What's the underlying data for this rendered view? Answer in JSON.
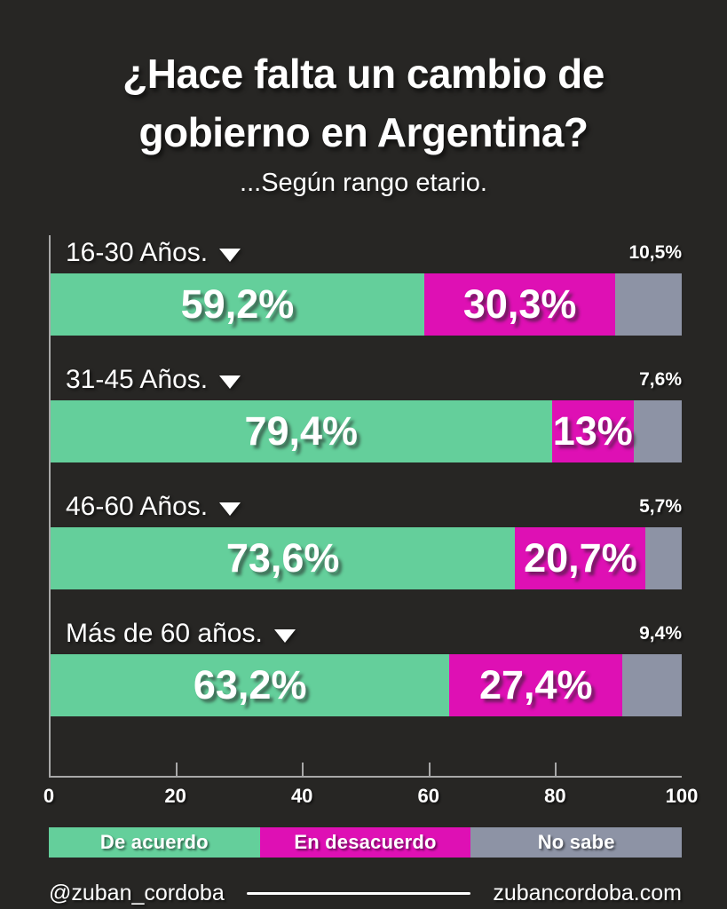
{
  "colors": {
    "background": "#272624",
    "axis": "#A8A8A8",
    "text": "#FFFFFF",
    "agree": "#64CF9B",
    "disagree": "#DE10B4",
    "no_answer": "#8D93A5"
  },
  "header": {
    "title_lines": [
      "¿Hace falta un cambio de",
      "gobierno en Argentina?"
    ],
    "title": "¿Hace falta un cambio de gobierno en Argentina?",
    "subtitle": "...Según rango etario."
  },
  "chart_data": {
    "type": "bar",
    "orientation": "horizontal",
    "stacked": true,
    "title": "¿Hace falta un cambio de gobierno en Argentina?",
    "subtitle": "...Según rango etario.",
    "categories": [
      "16-30 Años.",
      "31-45 Años.",
      "46-60 Años.",
      "Más de 60 años."
    ],
    "series": [
      {
        "name": "De acuerdo",
        "color": "#64CF9B",
        "values": [
          59.2,
          79.4,
          73.6,
          63.2
        ],
        "labels": [
          "59,2%",
          "79,4%",
          "73,6%",
          "63,2%"
        ],
        "label_position": "inside"
      },
      {
        "name": "En desacuerdo",
        "color": "#DE10B4",
        "values": [
          30.3,
          13.0,
          20.7,
          27.4
        ],
        "labels": [
          "30,3%",
          "13%",
          "20,7%",
          "27,4%"
        ],
        "label_position": "inside"
      },
      {
        "name": "No sabe",
        "color": "#8D93A5",
        "values": [
          10.5,
          7.6,
          5.7,
          9.4
        ],
        "labels": [
          "10,5%",
          "7,6%",
          "5,7%",
          "9,4%"
        ],
        "label_position": "above-right"
      }
    ],
    "xlim": [
      0,
      100
    ],
    "x_ticks": [
      0,
      20,
      40,
      60,
      80,
      100
    ],
    "grid": false,
    "legend_position": "bottom"
  },
  "footer": {
    "handle": "@zuban_cordoba",
    "website": "zubancordoba.com"
  }
}
